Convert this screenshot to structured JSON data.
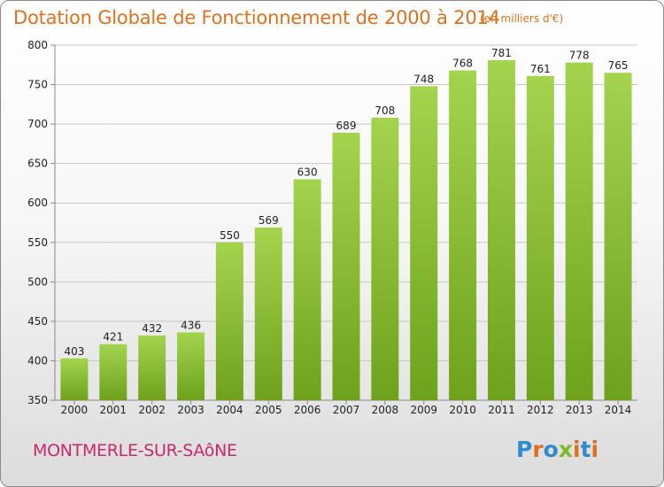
{
  "header": {
    "title": "Dotation Globale de Fonctionnement de 2000 à 2014",
    "unit": "(en milliers d'€)"
  },
  "footer": {
    "commune": "MONTMERLE-SUR-SAôNE",
    "brand": "Proxiti",
    "brand_colors": [
      "#2e8bcc",
      "#e0701e",
      "#2e8bcc",
      "#7cba2b",
      "#e0701e",
      "#2e8bcc",
      "#e0701e"
    ]
  },
  "colors": {
    "bar_light": "#a4d44e",
    "bar_dark": "#6ea21b",
    "title": "#e0701e",
    "commune": "#c8286e",
    "grid": "#c8c8c8"
  },
  "chart_data": {
    "type": "bar",
    "title": "Dotation Globale de Fonctionnement de 2000 à 2014",
    "subtitle": "(en milliers d'€)",
    "xlabel": "",
    "ylabel": "",
    "categories": [
      "2000",
      "2001",
      "2002",
      "2003",
      "2004",
      "2005",
      "2006",
      "2007",
      "2008",
      "2009",
      "2010",
      "2011",
      "2012",
      "2013",
      "2014"
    ],
    "values": [
      403,
      421,
      432,
      436,
      550,
      569,
      630,
      689,
      708,
      748,
      768,
      781,
      761,
      778,
      765
    ],
    "ylim": [
      350,
      800
    ],
    "yticks": [
      350,
      400,
      450,
      500,
      550,
      600,
      650,
      700,
      750,
      800
    ],
    "grid": true,
    "data_labels": true
  }
}
